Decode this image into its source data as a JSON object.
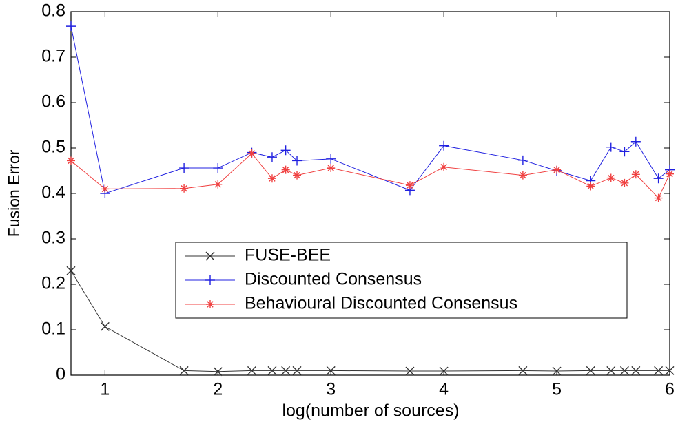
{
  "chart_data": {
    "type": "line",
    "xlabel": "log(number of sources)",
    "ylabel": "Fusion Error",
    "x": [
      0.699,
      1,
      1.7,
      2,
      2.3,
      2.48,
      2.6,
      2.7,
      3,
      3.7,
      4,
      4.7,
      5,
      5.3,
      5.48,
      5.6,
      5.7,
      5.9,
      6
    ],
    "series": [
      {
        "name": "FUSE-BEE",
        "color": "#333333",
        "marker": "x",
        "values": [
          0.23,
          0.107,
          0.01,
          0.008,
          0.01,
          0.01,
          0.01,
          0.01,
          0.01,
          0.009,
          0.009,
          0.01,
          0.009,
          0.01,
          0.01,
          0.01,
          0.01,
          0.01,
          0.01
        ]
      },
      {
        "name": "Discounted Consensus",
        "color": "#2020e0",
        "marker": "+",
        "values": [
          0.768,
          0.4,
          0.456,
          0.456,
          0.49,
          0.48,
          0.495,
          0.472,
          0.476,
          0.407,
          0.505,
          0.473,
          0.45,
          0.428,
          0.502,
          0.492,
          0.514,
          0.433,
          0.452
        ]
      },
      {
        "name": "Behavioural Discounted Consensus",
        "color": "#f04040",
        "marker": "*",
        "values": [
          0.472,
          0.41,
          0.411,
          0.42,
          0.488,
          0.433,
          0.452,
          0.44,
          0.456,
          0.418,
          0.458,
          0.44,
          0.452,
          0.416,
          0.434,
          0.423,
          0.442,
          0.39,
          0.443
        ]
      }
    ],
    "xlim": [
      0.699,
      6
    ],
    "xticks": [
      1,
      2,
      3,
      4,
      5,
      6
    ],
    "ylim": [
      0,
      0.8
    ],
    "yticks": [
      0,
      0.1,
      0.2,
      0.3,
      0.4,
      0.5,
      0.6,
      0.7,
      0.8
    ],
    "grid": false
  }
}
